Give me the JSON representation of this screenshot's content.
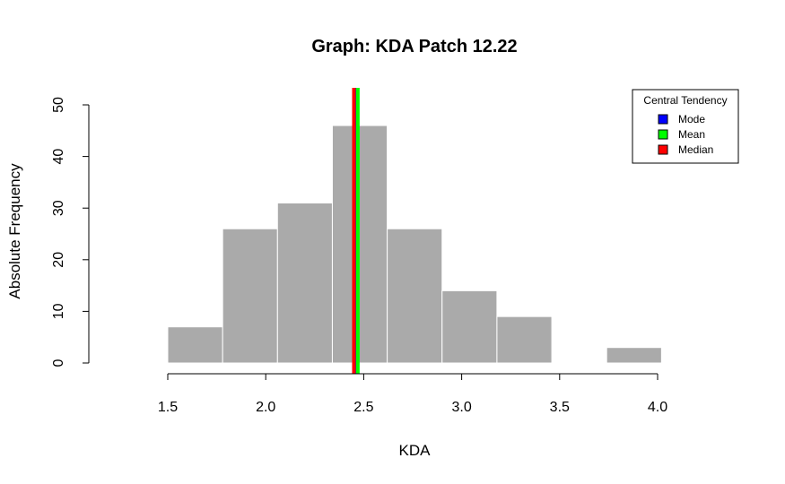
{
  "chart_data": {
    "type": "bar",
    "title": "Graph: KDA Patch 12.22",
    "xlabel": "KDA",
    "ylabel": "Absolute Frequency",
    "xlim": [
      1.5,
      4.0
    ],
    "ylim": [
      0,
      50
    ],
    "x_ticks": [
      "1.5",
      "2.0",
      "2.5",
      "3.0",
      "3.5",
      "4.0"
    ],
    "y_ticks": [
      "0",
      "10",
      "20",
      "30",
      "40",
      "50"
    ],
    "bins": [
      {
        "start": 1.5,
        "end": 1.78,
        "count": 7
      },
      {
        "start": 1.78,
        "end": 2.06,
        "count": 26
      },
      {
        "start": 2.06,
        "end": 2.34,
        "count": 31
      },
      {
        "start": 2.34,
        "end": 2.62,
        "count": 46
      },
      {
        "start": 2.62,
        "end": 2.9,
        "count": 26
      },
      {
        "start": 2.9,
        "end": 3.18,
        "count": 14
      },
      {
        "start": 3.18,
        "end": 3.46,
        "count": 9
      },
      {
        "start": 3.46,
        "end": 3.74,
        "count": 0
      },
      {
        "start": 3.74,
        "end": 4.02,
        "count": 3
      }
    ],
    "bar_color": "#aaaaaa",
    "central_tendency": [
      {
        "name": "Mode",
        "value": 2.455,
        "color": "#0000ff"
      },
      {
        "name": "Mean",
        "value": 2.47,
        "color": "#00ff00"
      },
      {
        "name": "Median",
        "value": 2.45,
        "color": "#ff0000"
      }
    ],
    "legend": {
      "title": "Central Tendency",
      "placement": "top-right",
      "entries": [
        "Mode",
        "Mean",
        "Median"
      ]
    },
    "grid": false
  }
}
